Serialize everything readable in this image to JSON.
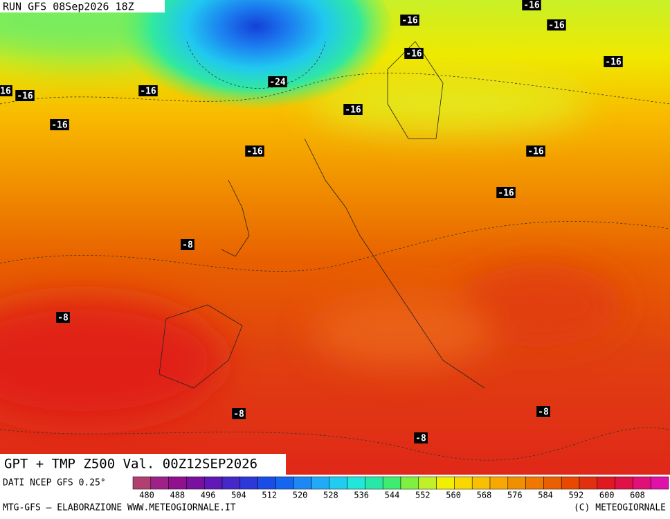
{
  "header": {
    "run": "RUN GFS 08Sep2026 18Z"
  },
  "title": "GPT + TMP Z500 Val. 00Z12SEP2026",
  "contour_labels": [
    "-16",
    "-16",
    "-16",
    "-16",
    "-16",
    "16",
    "-16",
    "-16",
    "-16",
    "-16",
    "-16",
    "-16",
    "-16",
    "-24",
    "-8",
    "-8",
    "-8",
    "-8",
    "-8"
  ],
  "legend": {
    "source": "DATI NCEP GFS 0.25°",
    "ticks": [
      480,
      488,
      496,
      504,
      512,
      520,
      528,
      536,
      544,
      552,
      560,
      568,
      576,
      584,
      592,
      600,
      608
    ],
    "colors": [
      "#b04070",
      "#a0208a",
      "#901090",
      "#7a10a0",
      "#6018b8",
      "#4428c8",
      "#2c38d8",
      "#1a4ce8",
      "#1466f0",
      "#1c88f6",
      "#20aaf8",
      "#20ccf0",
      "#20e6dc",
      "#28e8a8",
      "#40ec70",
      "#80f040",
      "#c0f028",
      "#f0f000",
      "#f8d800",
      "#f8c000",
      "#f8a800",
      "#f09000",
      "#f07800",
      "#e86000",
      "#e84800",
      "#e03010",
      "#e01820",
      "#e01048",
      "#e01078",
      "#e010a8"
    ]
  },
  "footer": {
    "left": "MTG-GFS — ELABORAZIONE WWW.METEOGIORNALE.IT",
    "right": "(C) METEOGIORNALE"
  }
}
